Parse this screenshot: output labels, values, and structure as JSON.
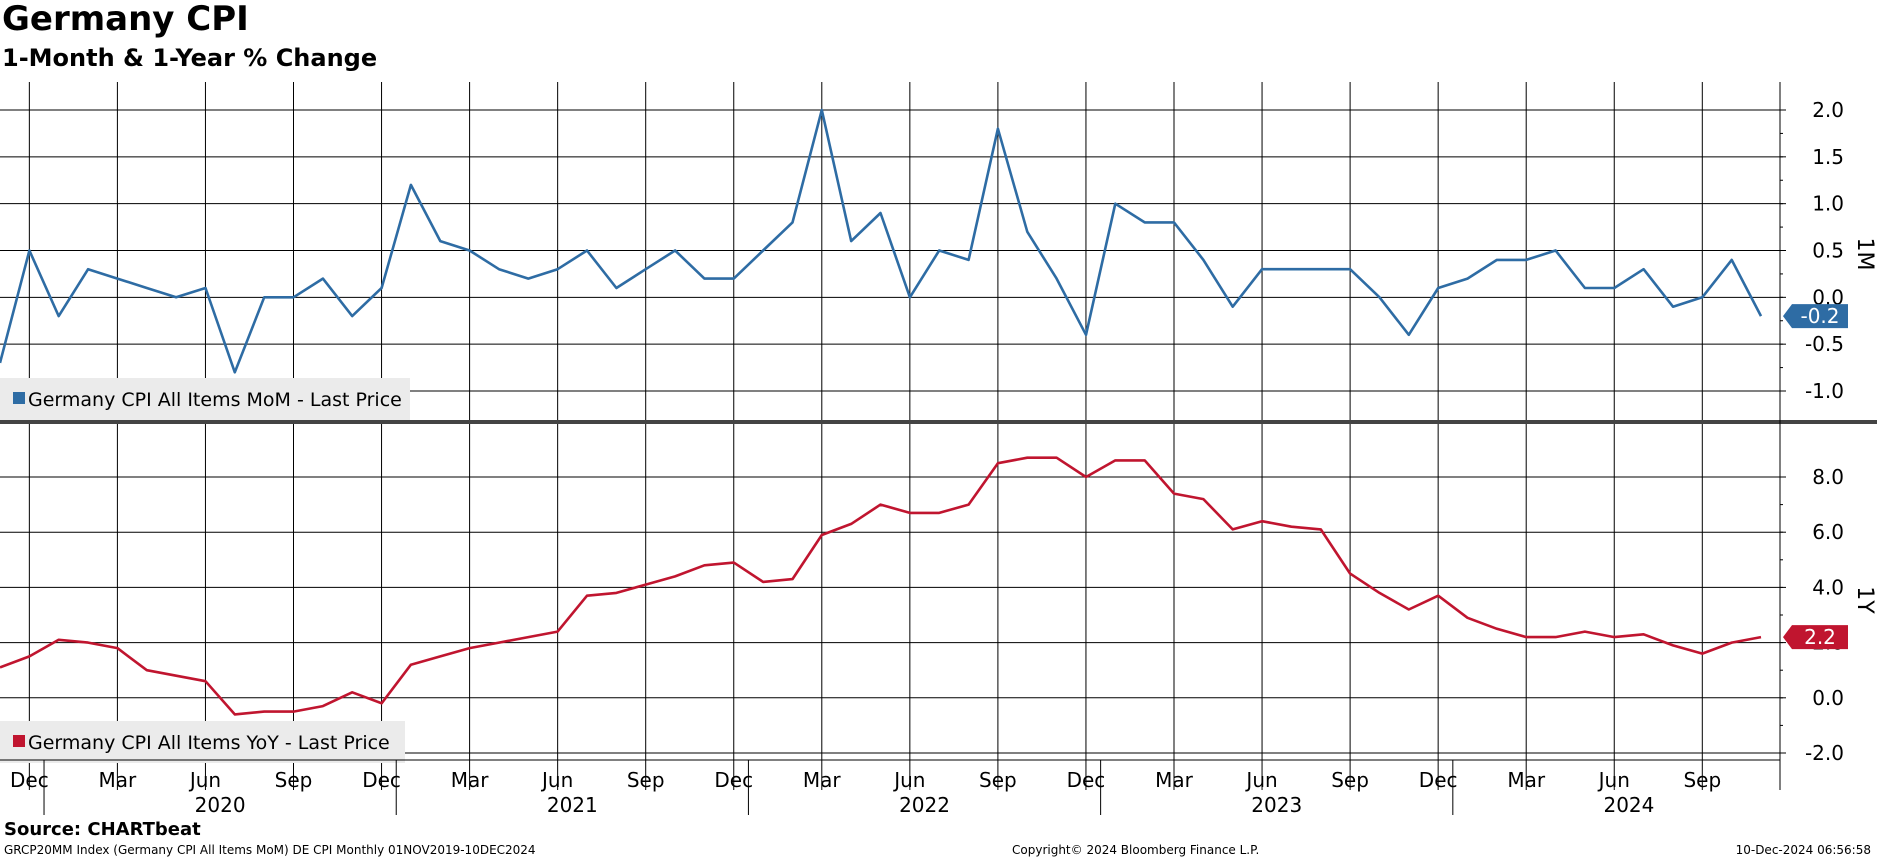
{
  "header": {
    "title": "Germany CPI",
    "subtitle": "1-Month & 1-Year % Change"
  },
  "footer": {
    "source": "Source: CHARTbeat",
    "ticker": "GRCP20MM Index (Germany CPI All Items MoM) DE CPI  Monthly 01NOV2019-10DEC2024",
    "copyright": "Copyright© 2024 Bloomberg Finance L.P.",
    "timestamp": "10-Dec-2024 06:56:58"
  },
  "colors": {
    "mom": "#2e6ca4",
    "yoy": "#c0152f",
    "grid": "#000000",
    "legend_bg": "#ebebeb"
  },
  "x_axis": {
    "month_labels": [
      "Dec",
      "Mar",
      "Jun",
      "Sep",
      "Dec",
      "Mar",
      "Jun",
      "Sep",
      "Dec",
      "Mar",
      "Jun",
      "Sep",
      "Dec",
      "Mar",
      "Jun",
      "Sep",
      "Dec",
      "Mar",
      "Jun",
      "Sep"
    ],
    "year_labels": [
      "2020",
      "2021",
      "2022",
      "2023",
      "2024"
    ]
  },
  "chart_data": [
    {
      "type": "line",
      "panel_label": "1M",
      "x": [
        "2019-11",
        "2019-12",
        "2020-01",
        "2020-02",
        "2020-03",
        "2020-04",
        "2020-05",
        "2020-06",
        "2020-07",
        "2020-08",
        "2020-09",
        "2020-10",
        "2020-11",
        "2020-12",
        "2021-01",
        "2021-02",
        "2021-03",
        "2021-04",
        "2021-05",
        "2021-06",
        "2021-07",
        "2021-08",
        "2021-09",
        "2021-10",
        "2021-11",
        "2021-12",
        "2022-01",
        "2022-02",
        "2022-03",
        "2022-04",
        "2022-05",
        "2022-06",
        "2022-07",
        "2022-08",
        "2022-09",
        "2022-10",
        "2022-11",
        "2022-12",
        "2023-01",
        "2023-02",
        "2023-03",
        "2023-04",
        "2023-05",
        "2023-06",
        "2023-07",
        "2023-08",
        "2023-09",
        "2023-10",
        "2023-11",
        "2023-12",
        "2024-01",
        "2024-02",
        "2024-03",
        "2024-04",
        "2024-05",
        "2024-06",
        "2024-07",
        "2024-08",
        "2024-09",
        "2024-10",
        "2024-11"
      ],
      "series": [
        {
          "name": "Germany CPI All Items MoM - Last Price",
          "values": [
            -0.7,
            0.5,
            -0.2,
            0.3,
            0.2,
            0.1,
            0.0,
            0.1,
            -0.8,
            0.0,
            0.0,
            0.2,
            -0.2,
            0.1,
            1.2,
            0.6,
            0.5,
            0.3,
            0.2,
            0.3,
            0.5,
            0.1,
            0.3,
            0.5,
            0.2,
            0.2,
            0.5,
            0.8,
            2.0,
            0.6,
            0.9,
            0.0,
            0.5,
            0.4,
            1.8,
            0.7,
            0.2,
            -0.4,
            1.0,
            0.8,
            0.8,
            0.4,
            -0.1,
            0.3,
            0.3,
            0.3,
            0.3,
            0.0,
            -0.4,
            0.1,
            0.2,
            0.4,
            0.4,
            0.5,
            0.1,
            0.1,
            0.3,
            -0.1,
            0.0,
            0.4,
            -0.2
          ]
        }
      ],
      "last_value_label": "-0.2",
      "ylim": [
        -1.3,
        2.3
      ],
      "yticks": [
        2.0,
        1.5,
        1.0,
        0.5,
        0.0,
        -0.5,
        -1.0
      ],
      "ytick_labels": [
        "2.0",
        "1.5",
        "1.0",
        "0.5",
        "0.0",
        "-0.5",
        "-1.0"
      ],
      "legend": "bottom-left",
      "grid": true
    },
    {
      "type": "line",
      "panel_label": "1Y",
      "x": [
        "2019-11",
        "2019-12",
        "2020-01",
        "2020-02",
        "2020-03",
        "2020-04",
        "2020-05",
        "2020-06",
        "2020-07",
        "2020-08",
        "2020-09",
        "2020-10",
        "2020-11",
        "2020-12",
        "2021-01",
        "2021-02",
        "2021-03",
        "2021-04",
        "2021-05",
        "2021-06",
        "2021-07",
        "2021-08",
        "2021-09",
        "2021-10",
        "2021-11",
        "2021-12",
        "2022-01",
        "2022-02",
        "2022-03",
        "2022-04",
        "2022-05",
        "2022-06",
        "2022-07",
        "2022-08",
        "2022-09",
        "2022-10",
        "2022-11",
        "2022-12",
        "2023-01",
        "2023-02",
        "2023-03",
        "2023-04",
        "2023-05",
        "2023-06",
        "2023-07",
        "2023-08",
        "2023-09",
        "2023-10",
        "2023-11",
        "2023-12",
        "2024-01",
        "2024-02",
        "2024-03",
        "2024-04",
        "2024-05",
        "2024-06",
        "2024-07",
        "2024-08",
        "2024-09",
        "2024-10",
        "2024-11"
      ],
      "series": [
        {
          "name": "Germany CPI All Items YoY - Last Price",
          "values": [
            1.1,
            1.5,
            2.1,
            2.0,
            1.8,
            1.0,
            0.8,
            0.6,
            -0.6,
            -0.5,
            -0.5,
            -0.3,
            0.2,
            -0.2,
            1.2,
            1.5,
            1.8,
            2.0,
            2.2,
            2.4,
            3.7,
            3.8,
            4.1,
            4.4,
            4.8,
            4.9,
            4.2,
            4.3,
            5.9,
            6.3,
            7.0,
            6.7,
            6.7,
            7.0,
            8.5,
            8.7,
            8.7,
            8.0,
            8.6,
            8.6,
            7.4,
            7.2,
            6.1,
            6.4,
            6.2,
            6.1,
            4.5,
            3.8,
            3.2,
            3.7,
            2.9,
            2.5,
            2.2,
            2.2,
            2.4,
            2.2,
            2.3,
            1.9,
            1.6,
            2.0,
            2.2
          ]
        }
      ],
      "last_value_label": "2.2",
      "ylim": [
        -2.2,
        9.3
      ],
      "yticks": [
        8.0,
        6.0,
        4.0,
        2.0,
        0.0,
        -2.0
      ],
      "ytick_labels": [
        "8.0",
        "6.0",
        "4.0",
        "2.0",
        "0.0",
        "-2.0"
      ],
      "legend": "bottom-left",
      "grid": true
    }
  ]
}
